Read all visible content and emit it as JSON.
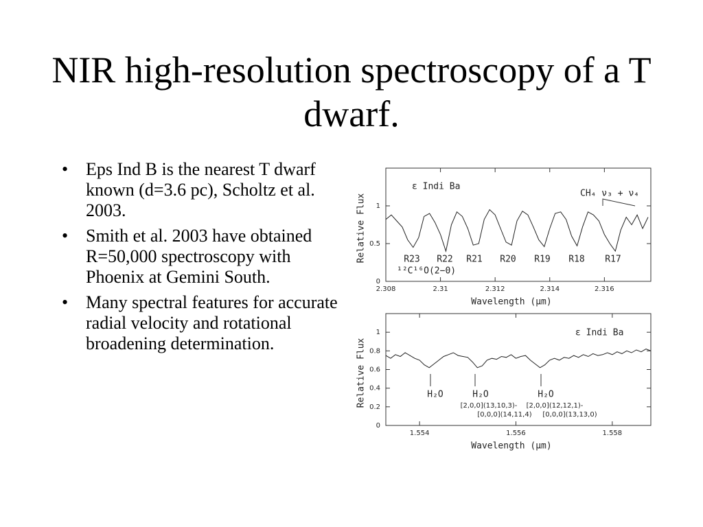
{
  "title": "NIR high-resolution spectroscopy of a T dwarf.",
  "bullets": [
    "Eps Ind B is the nearest T dwarf known (d=3.6 pc), Scholtz et al. 2003.",
    "Smith et al. 2003 have obtained R=50,000 spectroscopy with Phoenix at Gemini South.",
    "Many spectral features for accurate radial velocity and rotational broadening determination."
  ],
  "chart_data": [
    {
      "type": "line",
      "xlabel": "Wavelength (μm)",
      "ylabel": "Relative Flux",
      "color": "#222222",
      "xlim": [
        2.308,
        2.3177
      ],
      "ylim": [
        0,
        1.5
      ],
      "xticks": [
        2.308,
        2.31,
        2.312,
        2.314,
        2.316
      ],
      "yticks": [
        0,
        0.5,
        1
      ],
      "annotations": [
        "ε Indi Ba",
        "CH₄ ν₃ + ν₄",
        "R23",
        "R22",
        "R21",
        "R20",
        "R19",
        "R18",
        "R17",
        "¹²C¹⁶O(2−0)"
      ],
      "x": [
        2.308,
        2.3082,
        2.3084,
        2.3086,
        2.3088,
        2.309,
        2.3092,
        2.3094,
        2.3096,
        2.3098,
        2.31,
        2.3102,
        2.3104,
        2.3106,
        2.3108,
        2.311,
        2.3112,
        2.3114,
        2.3116,
        2.3118,
        2.312,
        2.3122,
        2.3124,
        2.3126,
        2.3128,
        2.313,
        2.3132,
        2.3134,
        2.3136,
        2.3138,
        2.314,
        2.3142,
        2.3144,
        2.3146,
        2.3148,
        2.315,
        2.3152,
        2.3154,
        2.3156,
        2.3158,
        2.316,
        2.3162,
        2.3164,
        2.3166,
        2.3168,
        2.317,
        2.3172,
        2.3174,
        2.3176
      ],
      "values": [
        0.82,
        0.88,
        0.8,
        0.72,
        0.55,
        0.45,
        0.58,
        0.86,
        0.9,
        0.78,
        0.62,
        0.4,
        0.75,
        0.92,
        0.86,
        0.7,
        0.48,
        0.5,
        0.82,
        0.95,
        0.88,
        0.7,
        0.52,
        0.48,
        0.8,
        0.93,
        0.88,
        0.72,
        0.55,
        0.46,
        0.7,
        0.9,
        0.92,
        0.82,
        0.6,
        0.47,
        0.72,
        0.92,
        0.88,
        0.8,
        0.62,
        0.5,
        0.4,
        0.68,
        0.85,
        0.75,
        0.88,
        0.7,
        0.85
      ]
    },
    {
      "type": "line",
      "xlabel": "Wavelength (μm)",
      "ylabel": "Relative Flux",
      "color": "#222222",
      "xlim": [
        1.5533,
        1.5588
      ],
      "ylim": [
        0,
        1.2
      ],
      "xticks": [
        1.554,
        1.556,
        1.558
      ],
      "yticks": [
        0,
        0.2,
        0.4,
        0.6,
        0.8,
        1
      ],
      "annotations": [
        "ε Indi Ba",
        "H₂O",
        "H₂O",
        "H₂O",
        "[2,0,0](13,10,3)-",
        "[0,0,0](14,11,4)",
        "[2,0,0](12,12,1)-",
        "[0,0,0](13,13,0)"
      ],
      "x": [
        1.5533,
        1.5534,
        1.5535,
        1.5536,
        1.5537,
        1.5538,
        1.5539,
        1.554,
        1.5541,
        1.5542,
        1.5543,
        1.5544,
        1.5545,
        1.5546,
        1.5547,
        1.5548,
        1.5549,
        1.555,
        1.5551,
        1.5552,
        1.5553,
        1.5554,
        1.5555,
        1.5556,
        1.5557,
        1.5558,
        1.5559,
        1.556,
        1.5561,
        1.5562,
        1.5563,
        1.5564,
        1.5565,
        1.5566,
        1.5567,
        1.5568,
        1.5569,
        1.557,
        1.5571,
        1.5572,
        1.5573,
        1.5574,
        1.5575,
        1.5576,
        1.5577,
        1.5578,
        1.5579,
        1.558,
        1.5581,
        1.5582,
        1.5583,
        1.5584,
        1.5585,
        1.5586,
        1.5587,
        1.5588
      ],
      "values": [
        0.75,
        0.72,
        0.76,
        0.74,
        0.78,
        0.75,
        0.72,
        0.7,
        0.65,
        0.62,
        0.66,
        0.7,
        0.74,
        0.76,
        0.78,
        0.75,
        0.74,
        0.73,
        0.68,
        0.62,
        0.64,
        0.7,
        0.72,
        0.71,
        0.74,
        0.73,
        0.76,
        0.72,
        0.74,
        0.75,
        0.7,
        0.66,
        0.62,
        0.65,
        0.7,
        0.72,
        0.7,
        0.73,
        0.72,
        0.75,
        0.73,
        0.76,
        0.74,
        0.77,
        0.75,
        0.76,
        0.78,
        0.76,
        0.79,
        0.77,
        0.8,
        0.78,
        0.81,
        0.79,
        0.82,
        0.8
      ]
    }
  ]
}
